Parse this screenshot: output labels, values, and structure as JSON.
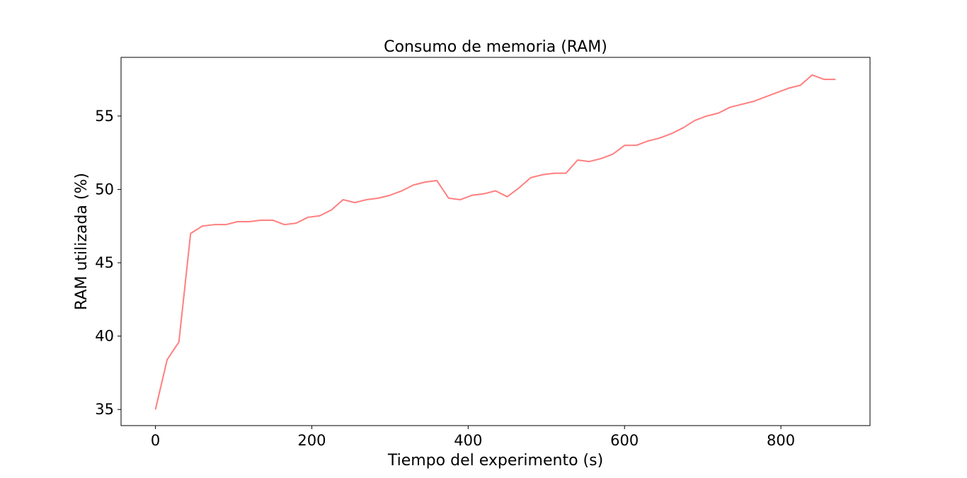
{
  "chart_data": {
    "type": "line",
    "title": "Consumo de memoria (RAM)",
    "xlabel": "Tiempo del experimento (s)",
    "ylabel": "RAM utilizada (%)",
    "xlim": [
      -44,
      914
    ],
    "ylim": [
      33.9,
      59.0
    ],
    "xticks": [
      0,
      200,
      400,
      600,
      800
    ],
    "yticks": [
      35,
      40,
      45,
      50,
      55
    ],
    "grid": false,
    "legend": "none",
    "series": [
      {
        "color": "#ff7f7f",
        "x": [
          0,
          15,
          30,
          45,
          60,
          75,
          90,
          105,
          120,
          135,
          150,
          165,
          180,
          195,
          210,
          225,
          240,
          255,
          270,
          285,
          300,
          315,
          330,
          345,
          360,
          375,
          390,
          405,
          420,
          435,
          450,
          465,
          480,
          495,
          510,
          525,
          540,
          555,
          570,
          585,
          600,
          615,
          630,
          645,
          660,
          675,
          690,
          705,
          720,
          735,
          750,
          765,
          780,
          795,
          810,
          825,
          840,
          855,
          870
        ],
        "y": [
          35.0,
          38.4,
          39.6,
          47.0,
          47.5,
          47.6,
          47.6,
          47.8,
          47.8,
          47.9,
          47.9,
          47.6,
          47.7,
          48.1,
          48.2,
          48.6,
          49.3,
          49.1,
          49.3,
          49.4,
          49.6,
          49.9,
          50.3,
          50.5,
          50.6,
          49.4,
          49.3,
          49.6,
          49.7,
          49.9,
          49.5,
          50.1,
          50.8,
          51.0,
          51.1,
          51.1,
          52.0,
          51.9,
          52.1,
          52.4,
          53.0,
          53.0,
          53.3,
          53.5,
          53.8,
          54.2,
          54.7,
          55.0,
          55.2,
          55.6,
          55.8,
          56.0,
          56.3,
          56.6,
          56.9,
          57.1,
          57.8,
          57.5,
          57.5
        ]
      }
    ]
  }
}
